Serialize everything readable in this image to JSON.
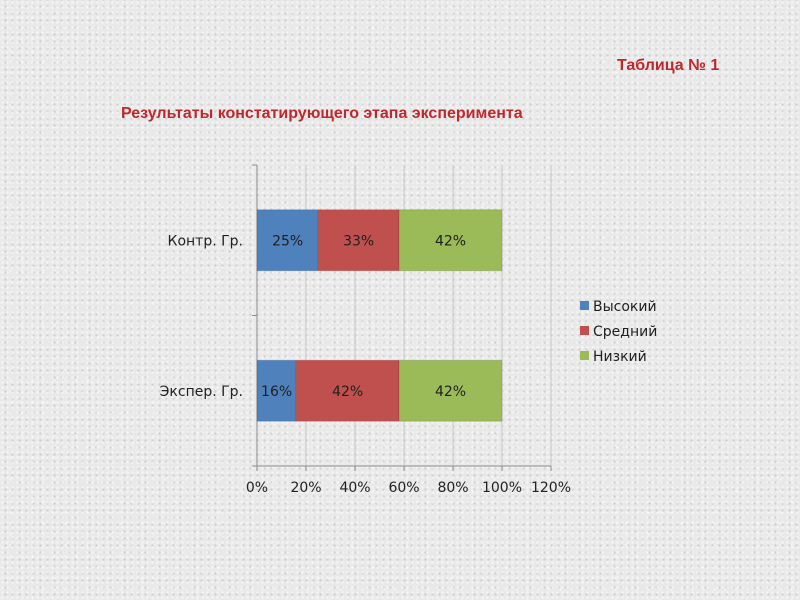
{
  "heading": {
    "table_number": "Таблица № 1",
    "title": "Результаты констатирующего этапа эксперимента"
  },
  "colors": {
    "title": "#c0272d",
    "series": [
      "#4f81bd",
      "#c0504d",
      "#9bbb59"
    ],
    "gridline": "#c8c8c8",
    "axis": "#8c8c8c"
  },
  "chart_data": {
    "type": "bar",
    "orientation": "horizontal",
    "stacked": true,
    "categories": [
      "Контр. Гр.",
      "Экспер. Гр."
    ],
    "series": [
      {
        "name": "Высокий",
        "values": [
          25,
          16
        ],
        "labels": [
          "25%",
          "16%"
        ]
      },
      {
        "name": "Средний",
        "values": [
          33,
          42
        ],
        "labels": [
          "33%",
          "42%"
        ]
      },
      {
        "name": "Низкий",
        "values": [
          42,
          42
        ],
        "labels": [
          "42%",
          "42%"
        ]
      }
    ],
    "xlim": [
      0,
      120
    ],
    "x_ticks": [
      0,
      20,
      40,
      60,
      80,
      100,
      120
    ],
    "x_tick_labels": [
      "0%",
      "20%",
      "40%",
      "60%",
      "80%",
      "100%",
      "120%"
    ],
    "grid": true,
    "legend_position": "right"
  }
}
